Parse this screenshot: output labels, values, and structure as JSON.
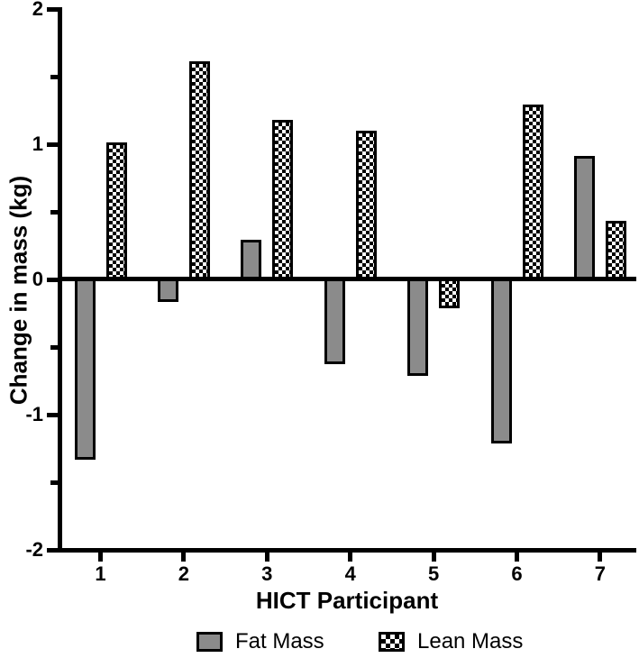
{
  "chart_data": {
    "type": "bar",
    "title": "",
    "xlabel": "HICT Participant",
    "ylabel": "Change in mass (kg)",
    "categories": [
      "1",
      "2",
      "3",
      "4",
      "5",
      "6",
      "7"
    ],
    "series": [
      {
        "name": "Fat Mass",
        "style": "solid",
        "color": "#8b8b8b",
        "values": [
          -1.32,
          -0.15,
          0.28,
          -0.61,
          -0.7,
          -1.2,
          0.9
        ]
      },
      {
        "name": "Lean Mass",
        "style": "checkerboard",
        "color": "#000000",
        "values": [
          1.0,
          1.6,
          1.17,
          1.09,
          -0.2,
          1.28,
          0.42
        ]
      }
    ],
    "ylim": [
      -2,
      2
    ],
    "yticks": [
      2,
      1,
      0,
      -1,
      -2
    ],
    "yticks_minor": [
      1.5,
      0.5,
      -0.5,
      -1.5
    ],
    "grid": false,
    "legend_position": "bottom",
    "baseline": 0,
    "bar_outline_color": "#000000",
    "background_color": "#ffffff"
  }
}
